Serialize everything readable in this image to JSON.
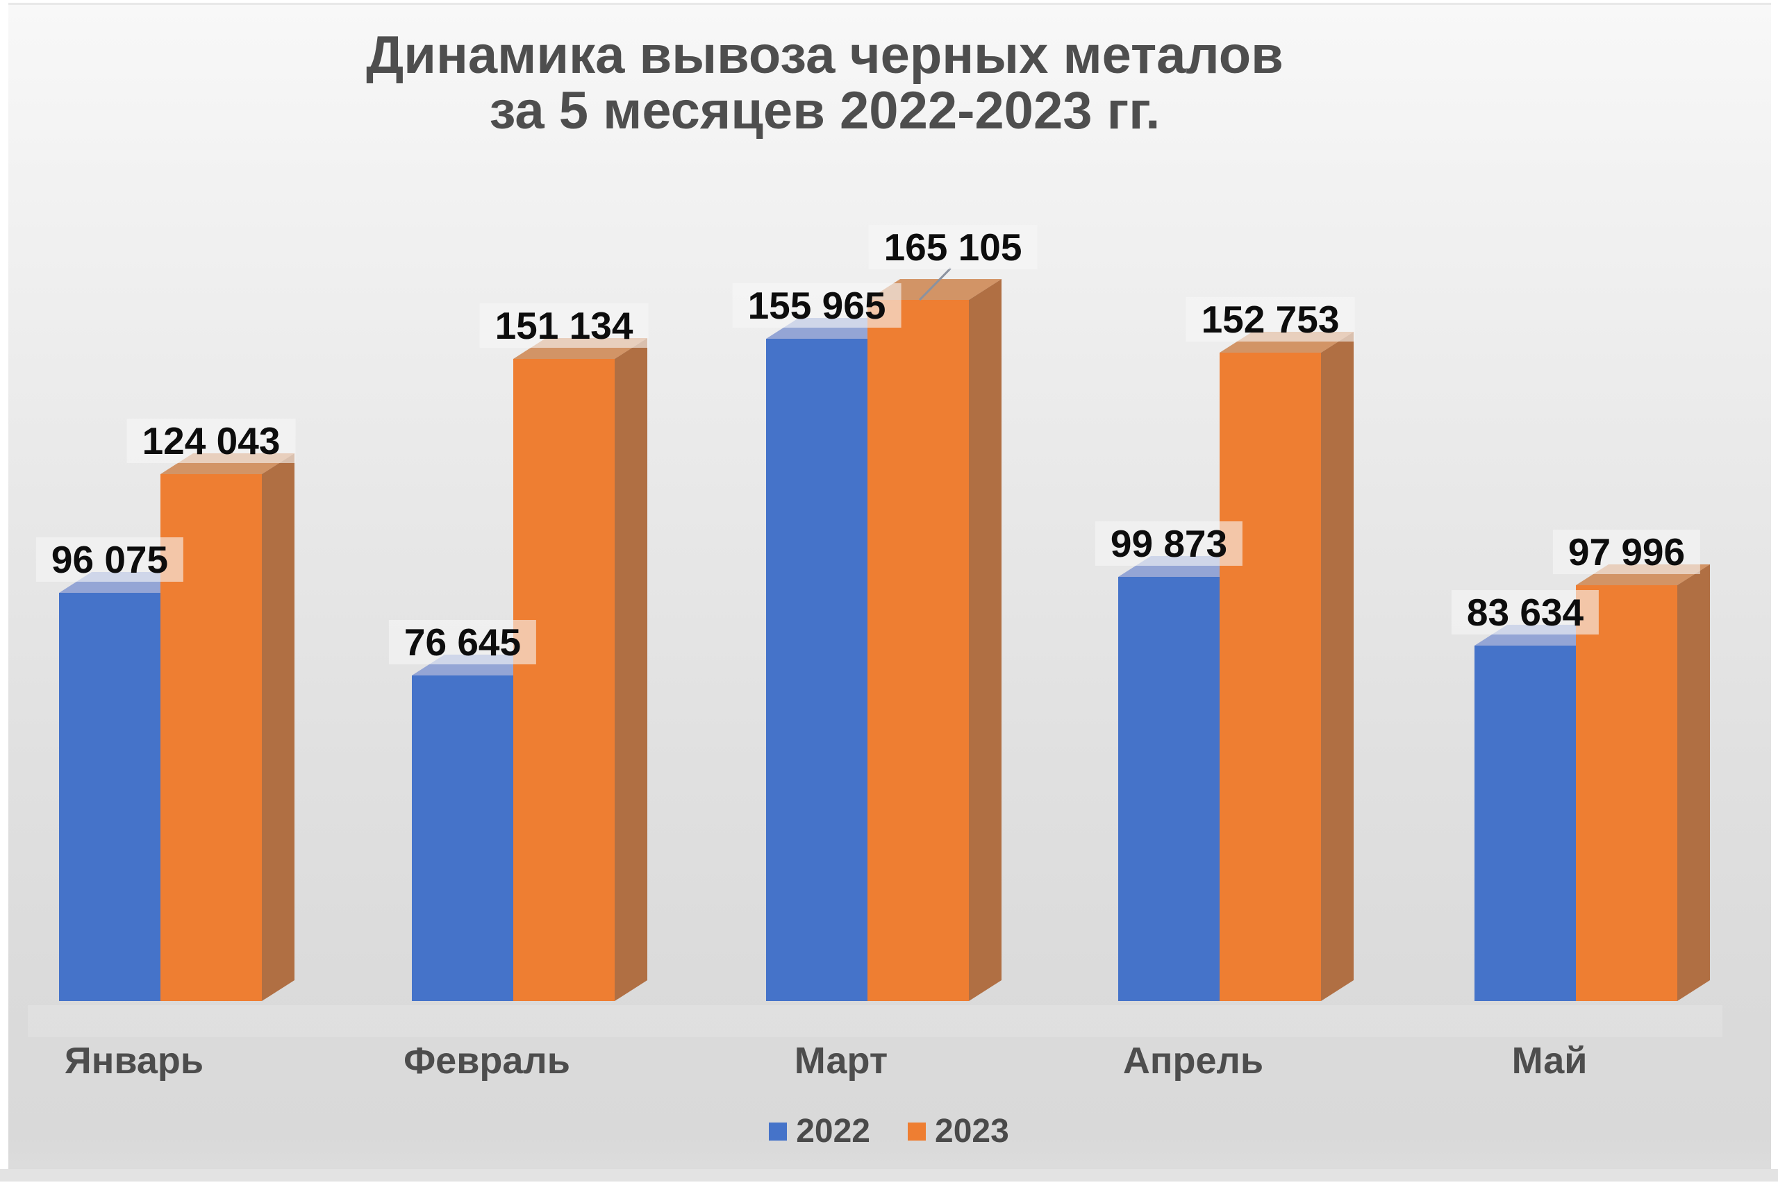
{
  "title": {
    "line1": "Динамика вывоза черных металов",
    "line2": "за 5 месяцев 2022-2023 гг."
  },
  "legend": [
    {
      "label": "2022",
      "color": "#4573C9"
    },
    {
      "label": "2023",
      "color": "#EE7E32"
    }
  ],
  "colors": {
    "title_text": "#4e4e4e",
    "category_text": "#4d4d4d",
    "data_label_text": "#0d0d0d",
    "data_label_bg": "rgba(247,247,247,0.60)",
    "leader_line": "#8b929f",
    "background_top": "#f8f8f8",
    "background_bottom": "#d9d9d9"
  },
  "chart_data": {
    "type": "bar",
    "variant": "3d-column",
    "title": "Динамика вывоза черных металов за 5 месяцев 2022-2023 гг.",
    "categories": [
      "Январь",
      "Февраль",
      "Март",
      "Апрель",
      "Май"
    ],
    "series": [
      {
        "name": "2022",
        "values": [
          96075,
          76645,
          155965,
          99873,
          83634
        ],
        "face_colors": {
          "front": "#4573C9",
          "top": "#94A5D5",
          "side": "#3A61A8"
        }
      },
      {
        "name": "2023",
        "values": [
          124043,
          151134,
          165105,
          152753,
          97996
        ],
        "face_colors": {
          "front": "#EE7E32",
          "top": "#D29466",
          "side": "#B06F43"
        }
      }
    ],
    "ylim": [
      0,
      170000
    ],
    "axes_visible": false,
    "grid": false,
    "legend_position": "bottom",
    "data_label_format": "thousands-space",
    "moved_label": {
      "series": "2023",
      "category": "Март",
      "leader_line": true
    }
  }
}
